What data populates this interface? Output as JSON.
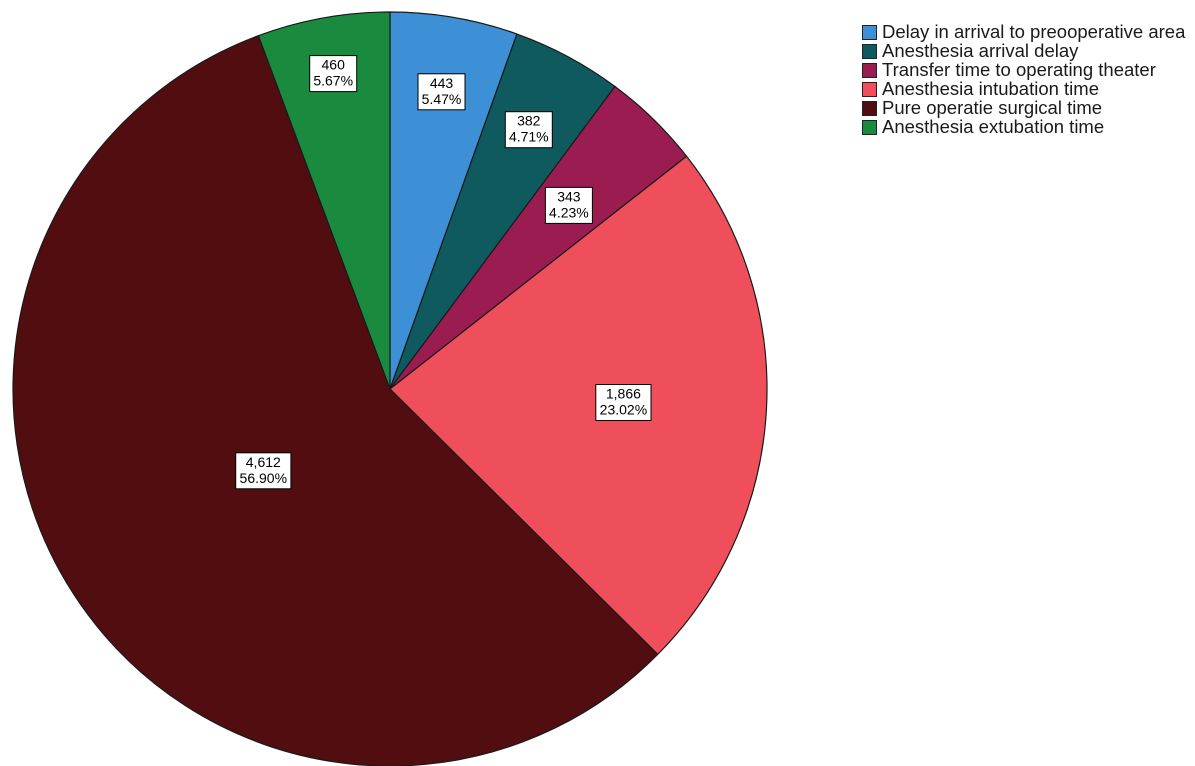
{
  "chart_data": {
    "type": "pie",
    "title": "",
    "slices": [
      {
        "label": "Delay in arrival to preooperative area",
        "value": 443,
        "percent": "5.47%",
        "value_text": "443",
        "color": "#3d8fd6"
      },
      {
        "label": "Anesthesia arrival delay",
        "value": 382,
        "percent": "4.71%",
        "value_text": "382",
        "color": "#0f5a5e"
      },
      {
        "label": "Transfer time to operating theater",
        "value": 343,
        "percent": "4.23%",
        "value_text": "343",
        "color": "#9b1c50"
      },
      {
        "label": "Anesthesia intubation time",
        "value": 1866,
        "percent": "23.02%",
        "value_text": "1,866",
        "color": "#ee4f5a"
      },
      {
        "label": "Pure operatie surgical time",
        "value": 4612,
        "percent": "56.90%",
        "value_text": "4,612",
        "color": "#520d10"
      },
      {
        "label": "Anesthesia extubation time",
        "value": 460,
        "percent": "5.67%",
        "value_text": "460",
        "color": "#1a8a3e"
      }
    ],
    "legend_position": "top-right",
    "start_angle": "12 o'clock",
    "direction": "clockwise"
  }
}
